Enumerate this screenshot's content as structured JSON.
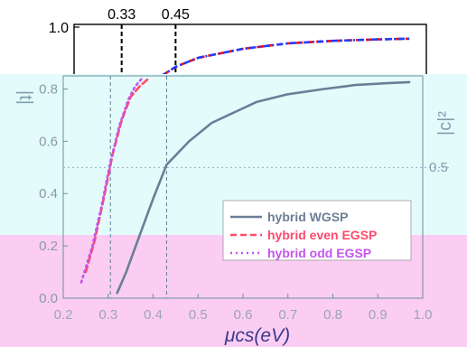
{
  "chart_data": {
    "type": "line",
    "composition": "overlapping-panels",
    "top_panel": {
      "ylim": [
        0.8,
        1.0
      ],
      "y_ticks": [
        "1.0",
        "0.8"
      ],
      "top_axis_labels": [
        "0.33",
        "0.45"
      ],
      "vlines_x": [
        0.33,
        0.45
      ],
      "series": [
        {
          "name": "",
          "color": "#ff0000",
          "style": "dashed",
          "x": [
            0.36,
            0.4,
            0.45,
            0.5,
            0.6,
            0.7,
            0.8,
            0.9,
            0.97
          ],
          "y": [
            0.84,
            0.85,
            0.89,
            0.915,
            0.94,
            0.955,
            0.962,
            0.966,
            0.968
          ]
        },
        {
          "name": "",
          "color": "#1f3fff",
          "style": "dashdot",
          "x": [
            0.36,
            0.4,
            0.45,
            0.5,
            0.6,
            0.7,
            0.8,
            0.9,
            0.97
          ],
          "y": [
            0.84,
            0.85,
            0.89,
            0.915,
            0.94,
            0.955,
            0.962,
            0.966,
            0.968
          ]
        },
        {
          "name": "",
          "color": "#000000",
          "style": "solid",
          "x": [
            0.85,
            0.9,
            0.97
          ],
          "y": [
            0.81,
            0.818,
            0.826
          ]
        }
      ]
    },
    "main_panel": {
      "xlabel": "μcs(eV)",
      "ylabel_left": "|t|",
      "ylabel_right": "|c|²",
      "right_tick": "0.5",
      "xlim": [
        0.2,
        1.0
      ],
      "ylim": [
        0.0,
        0.85
      ],
      "x_ticks": [
        "0.2",
        "0.3",
        "0.4",
        "0.5",
        "0.6",
        "0.7",
        "0.8",
        "0.9",
        "1.0"
      ],
      "y_ticks": [
        "0.0",
        "0.2",
        "0.4",
        "0.6",
        "0.8"
      ],
      "vlines_x": [
        0.305,
        0.43
      ],
      "hline_y": 0.5,
      "legend_location": "lower-right",
      "series": [
        {
          "name": "hybrid WGSP",
          "color": "#6a7f96",
          "style": "solid",
          "x": [
            0.32,
            0.34,
            0.37,
            0.4,
            0.43,
            0.48,
            0.53,
            0.58,
            0.63,
            0.7,
            0.78,
            0.85,
            0.92,
            0.97
          ],
          "y": [
            0.02,
            0.1,
            0.24,
            0.38,
            0.51,
            0.6,
            0.67,
            0.71,
            0.75,
            0.78,
            0.8,
            0.815,
            0.822,
            0.826
          ]
        },
        {
          "name": "hybrid even EGSP",
          "color": "#ff4a6a",
          "style": "dashed",
          "x": [
            0.25,
            0.27,
            0.29,
            0.31,
            0.33,
            0.35,
            0.37,
            0.39
          ],
          "y": [
            0.1,
            0.22,
            0.38,
            0.55,
            0.68,
            0.77,
            0.81,
            0.84
          ]
        },
        {
          "name": "hybrid odd EGSP",
          "color": "#c455ee",
          "style": "dotted",
          "x": [
            0.24,
            0.265,
            0.285,
            0.305,
            0.325,
            0.345,
            0.36,
            0.375
          ],
          "y": [
            0.06,
            0.2,
            0.35,
            0.52,
            0.66,
            0.76,
            0.81,
            0.84
          ]
        }
      ]
    }
  }
}
